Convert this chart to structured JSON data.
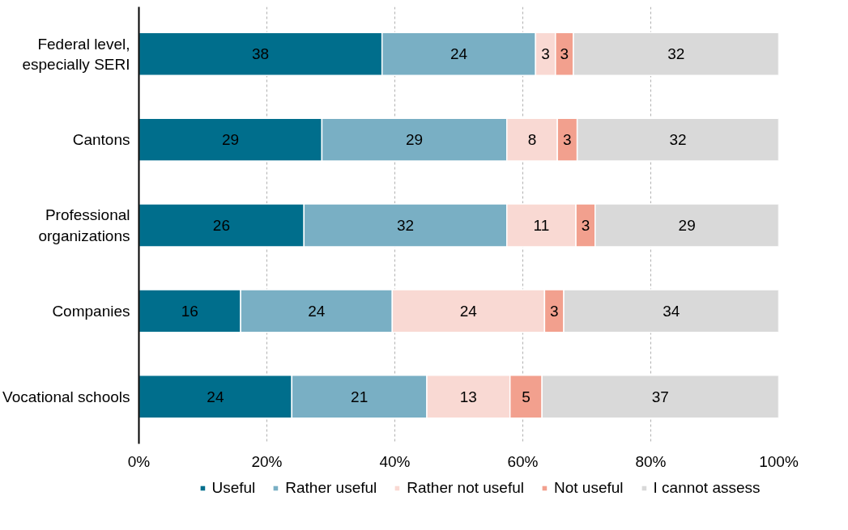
{
  "chart_data": {
    "type": "bar",
    "orientation": "horizontal",
    "stacked": true,
    "categories": [
      "Federal level,\nespecially SERI",
      "Cantons",
      "Professional\norganizations",
      "Companies",
      "Vocational schools"
    ],
    "series": [
      {
        "name": "Useful",
        "color": "#006e8c",
        "values": [
          38.0,
          28.6,
          25.8,
          15.9,
          23.9
        ],
        "value_labels": [
          "38",
          "29",
          "26",
          "16",
          "24"
        ]
      },
      {
        "name": "Rather useful",
        "color": "#79afc4",
        "values": [
          24.0,
          28.9,
          31.7,
          23.7,
          21.1
        ],
        "value_labels": [
          "24",
          "29",
          "32",
          "24",
          "21"
        ]
      },
      {
        "name": "Rather not useful",
        "color": "#f9d9d3",
        "values": [
          3.1,
          7.9,
          10.8,
          23.8,
          13.0
        ],
        "value_labels": [
          "3",
          "8",
          "11",
          "24",
          "13"
        ]
      },
      {
        "name": "Not useful",
        "color": "#f2a08e",
        "values": [
          2.8,
          3.1,
          3.0,
          3.0,
          5.0
        ],
        "value_labels": [
          "3",
          "3",
          "3",
          "3",
          "5"
        ]
      },
      {
        "name": "I cannot assess",
        "color": "#d9d9d9",
        "values": [
          32.1,
          31.5,
          28.7,
          33.6,
          37.0
        ],
        "value_labels": [
          "32",
          "32",
          "29",
          "34",
          "37"
        ]
      }
    ],
    "xlim": [
      0,
      100
    ],
    "xticks": [
      {
        "value": 0,
        "label": "0%"
      },
      {
        "value": 20,
        "label": "20%"
      },
      {
        "value": 40,
        "label": "40%"
      },
      {
        "value": 60,
        "label": "60%"
      },
      {
        "value": 80,
        "label": "80%"
      },
      {
        "value": 100,
        "label": "100%"
      }
    ],
    "grid": "x",
    "legend": "bottom"
  }
}
